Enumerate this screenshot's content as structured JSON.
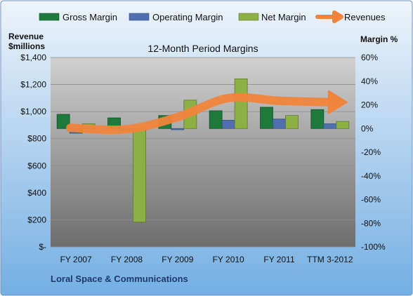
{
  "colors": {
    "gross": "#1e7a3c",
    "operating": "#4f6fb0",
    "net": "#8db045",
    "revenue_arrow": "#f0843a",
    "frame_bg_top": "#eef4fb",
    "frame_bg_bottom": "#74afe3"
  },
  "legend": {
    "gross": "Gross Margin",
    "operating": "Operating Margin",
    "net": "Net Margin",
    "revenues": "Revenues"
  },
  "labels": {
    "left_axis_title_line1": "Revenue",
    "left_axis_title_line2": "$millions",
    "right_axis_title": "Margin %",
    "footer": "Loral Space & Communications"
  },
  "chart_data": {
    "type": "bar",
    "title": "12-Month Period Margins",
    "categories": [
      "FY 2007",
      "FY 2008",
      "FY 2009",
      "FY 2010",
      "FY 2011",
      "TTM 3-2012"
    ],
    "series": [
      {
        "name": "Gross Margin",
        "axis": "right",
        "values": [
          12,
          9,
          11,
          15,
          18,
          16
        ]
      },
      {
        "name": "Operating Margin",
        "axis": "right",
        "values": [
          -4,
          -2,
          -1,
          7,
          8,
          4
        ]
      },
      {
        "name": "Net Margin",
        "axis": "right",
        "values": [
          4,
          -79,
          24,
          42,
          11,
          6
        ]
      },
      {
        "name": "Revenues",
        "axis": "left",
        "type": "line-arrow",
        "values": [
          880,
          870,
          960,
          1100,
          1080,
          1070
        ]
      }
    ],
    "y_left": {
      "ylim": [
        0,
        1400
      ],
      "ticks": [
        "$-",
        "$200",
        "$400",
        "$600",
        "$800",
        "$1,000",
        "$1,200",
        "$1,400"
      ]
    },
    "y_right": {
      "ylim": [
        -100,
        60
      ],
      "ticks": [
        "-100%",
        "-80%",
        "-60%",
        "-40%",
        "-20%",
        "0%",
        "20%",
        "40%",
        "60%"
      ]
    },
    "grid": true,
    "legend_position": "top"
  }
}
